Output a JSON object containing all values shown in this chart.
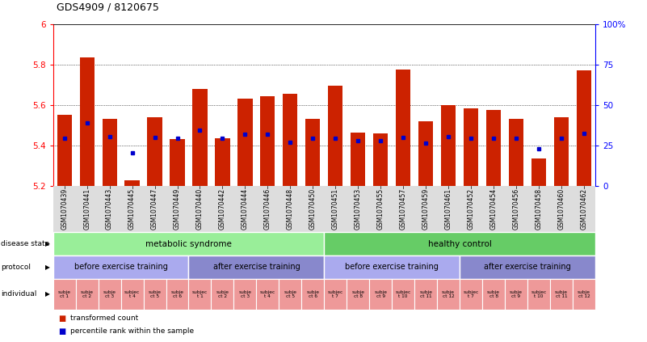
{
  "title": "GDS4909 / 8120675",
  "samples": [
    "GSM1070439",
    "GSM1070441",
    "GSM1070443",
    "GSM1070445",
    "GSM1070447",
    "GSM1070449",
    "GSM1070440",
    "GSM1070442",
    "GSM1070444",
    "GSM1070446",
    "GSM1070448",
    "GSM1070450",
    "GSM1070451",
    "GSM1070453",
    "GSM1070455",
    "GSM1070457",
    "GSM1070459",
    "GSM1070461",
    "GSM1070452",
    "GSM1070454",
    "GSM1070456",
    "GSM1070458",
    "GSM1070460",
    "GSM1070462"
  ],
  "bar_heights": [
    5.55,
    5.835,
    5.53,
    5.23,
    5.54,
    5.43,
    5.68,
    5.435,
    5.63,
    5.645,
    5.655,
    5.53,
    5.695,
    5.465,
    5.46,
    5.775,
    5.52,
    5.6,
    5.585,
    5.575,
    5.53,
    5.335,
    5.54,
    5.77
  ],
  "blue_dot_y": [
    5.435,
    5.51,
    5.445,
    5.365,
    5.44,
    5.435,
    5.475,
    5.435,
    5.455,
    5.455,
    5.415,
    5.435,
    5.435,
    5.425,
    5.425,
    5.44,
    5.41,
    5.445,
    5.435,
    5.435,
    5.435,
    5.385,
    5.435,
    5.46
  ],
  "y_min": 5.2,
  "y_max": 6.0,
  "y_ticks_left": [
    5.2,
    5.4,
    5.6,
    5.8,
    6.0
  ],
  "y_ticks_right_pct": [
    0,
    25,
    50,
    75,
    100
  ],
  "bar_color": "#CC2200",
  "dot_color": "#0000CC",
  "disease_state_groups": [
    {
      "label": "metabolic syndrome",
      "start": 0,
      "end": 12,
      "color": "#99EE99"
    },
    {
      "label": "healthy control",
      "start": 12,
      "end": 24,
      "color": "#66CC66"
    }
  ],
  "protocol_groups": [
    {
      "label": "before exercise training",
      "start": 0,
      "end": 6,
      "color": "#AAAAEE"
    },
    {
      "label": "after exercise training",
      "start": 6,
      "end": 12,
      "color": "#8888CC"
    },
    {
      "label": "before exercise training",
      "start": 12,
      "end": 18,
      "color": "#AAAAEE"
    },
    {
      "label": "after exercise training",
      "start": 18,
      "end": 24,
      "color": "#8888CC"
    }
  ],
  "individual_labels": [
    "subje\nct 1",
    "subje\nct 2",
    "subje\nct 3",
    "subjec\nt 4",
    "subje\nct 5",
    "subje\nct 6",
    "subjec\nt 1",
    "subje\nct 2",
    "subje\nct 3",
    "subjec\nt 4",
    "subje\nct 5",
    "subje\nct 6",
    "subjec\nt 7",
    "subje\nct 8",
    "subje\nct 9",
    "subjec\nt 10",
    "subje\nct 11",
    "subje\nct 12",
    "subjec\nt 7",
    "subje\nct 8",
    "subje\nct 9",
    "subjec\nt 10",
    "subje\nct 11",
    "subje\nct 12"
  ],
  "row_labels": [
    "disease state",
    "protocol",
    "individual"
  ],
  "legend_items": [
    {
      "label": "transformed count",
      "color": "#CC2200"
    },
    {
      "label": "percentile rank within the sample",
      "color": "#0000CC"
    }
  ],
  "xtick_bg_color": "#CCCCCC",
  "individual_color_even": "#EE9999",
  "individual_color_odd": "#DD7777"
}
